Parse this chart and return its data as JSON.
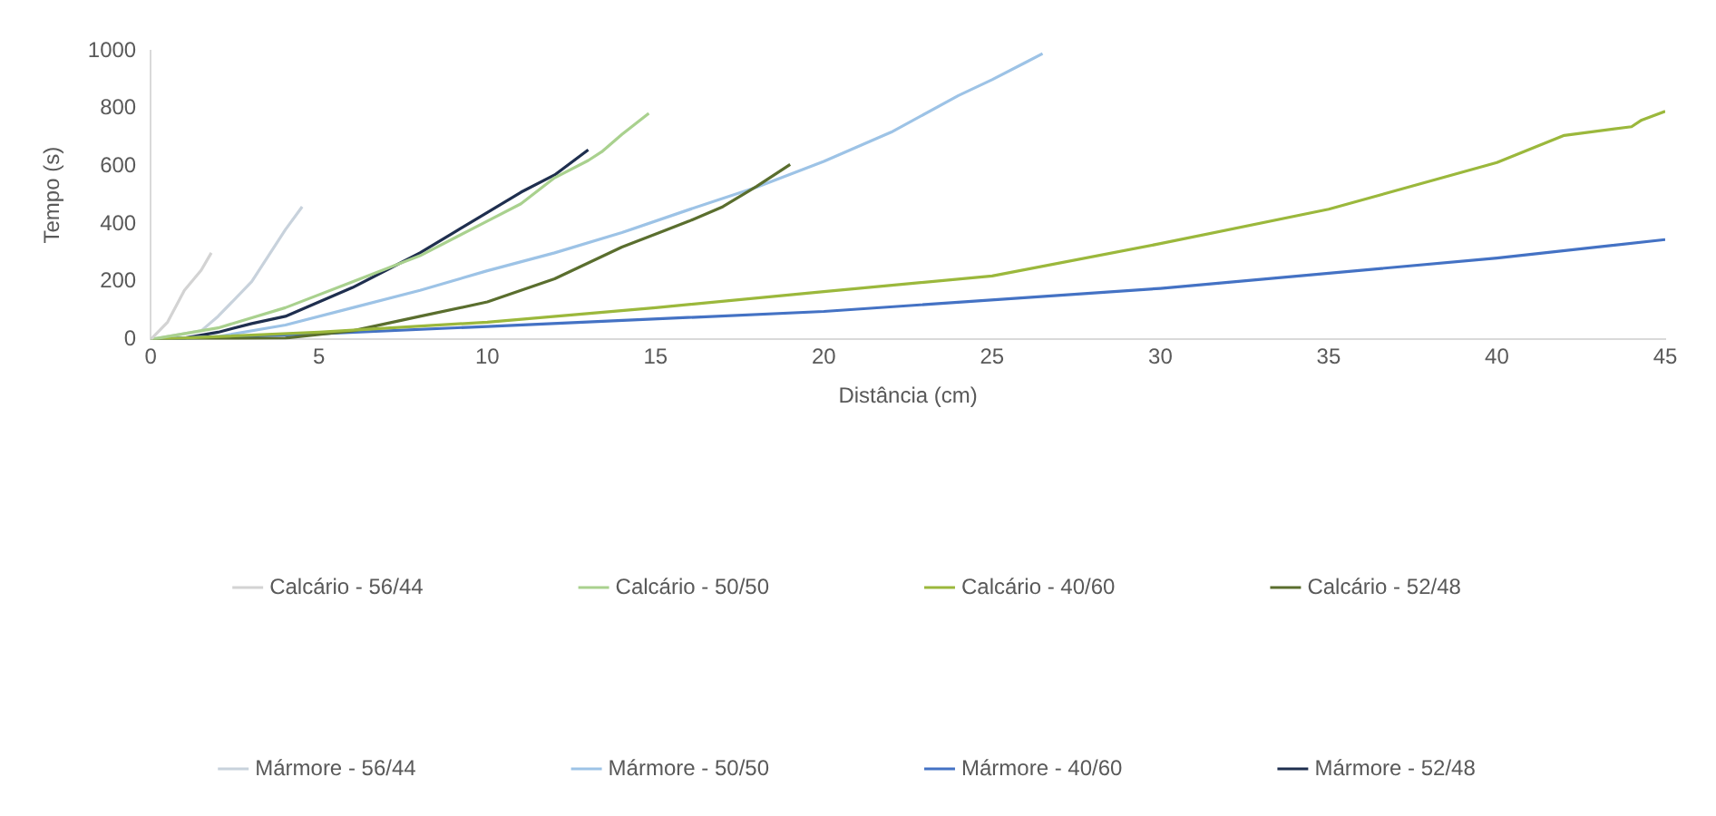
{
  "chart_data": {
    "type": "line",
    "xlabel": "Distância (cm)",
    "ylabel": "Tempo (s)",
    "xlim": [
      0,
      45
    ],
    "xticks": [
      0,
      5,
      10,
      15,
      20,
      25,
      30,
      35,
      40,
      45
    ],
    "ylim": [
      0,
      1000
    ],
    "yticks": [
      0,
      200,
      400,
      600,
      800,
      1000
    ],
    "grid": false,
    "legend": "bottom",
    "marker": "none",
    "line_style": "solid",
    "series": [
      {
        "name": "Calcário - 56/44",
        "color": "#d3d3d3",
        "x": [
          0,
          0.5,
          1,
          1.5,
          1.8
        ],
        "values": [
          0,
          60,
          170,
          240,
          300
        ]
      },
      {
        "name": "Calcário - 50/50",
        "color": "#a9d18e",
        "x": [
          0,
          2,
          4,
          6,
          8,
          10,
          11,
          12,
          13,
          13.4,
          14,
          14.8
        ],
        "values": [
          0,
          40,
          110,
          200,
          290,
          410,
          470,
          560,
          620,
          650,
          710,
          783
        ]
      },
      {
        "name": "Calcário - 40/60",
        "color": "#9bb83c",
        "x": [
          0,
          5,
          10,
          15,
          20,
          25,
          30,
          35,
          40,
          42,
          44,
          44.3,
          45
        ],
        "values": [
          0,
          25,
          60,
          110,
          166,
          220,
          332,
          451,
          613,
          707,
          737,
          760,
          790
        ]
      },
      {
        "name": "Calcário - 52/48",
        "color": "#5a6e2e",
        "x": [
          0,
          4,
          6,
          8,
          10,
          12,
          14,
          16,
          17,
          18,
          19
        ],
        "values": [
          0,
          5,
          30,
          80,
          130,
          210,
          320,
          410,
          460,
          530,
          606
        ]
      },
      {
        "name": "Mármore - 56/44",
        "color": "#c8d2dc",
        "x": [
          0,
          1.5,
          2,
          3,
          4,
          4.5
        ],
        "values": [
          0,
          30,
          80,
          200,
          380,
          460
        ]
      },
      {
        "name": "Mármore - 50/50",
        "color": "#9dc3e6",
        "x": [
          0,
          2,
          4,
          6,
          8,
          10,
          12,
          14,
          16,
          18,
          20,
          22,
          24,
          25,
          26,
          26.5
        ],
        "values": [
          0,
          10,
          50,
          110,
          170,
          238,
          300,
          370,
          450,
          527,
          617,
          718,
          845,
          900,
          960,
          990
        ]
      },
      {
        "name": "Mármore - 40/60",
        "color": "#4472c4",
        "x": [
          0,
          5,
          10,
          20,
          30,
          40,
          45
        ],
        "values": [
          0,
          20,
          45,
          97,
          177,
          282,
          346
        ]
      },
      {
        "name": "Mármore - 52/48",
        "color": "#1f2f4f",
        "x": [
          0,
          1,
          2,
          3,
          4,
          5,
          6,
          7,
          8,
          9,
          10,
          11,
          12,
          13
        ],
        "values": [
          0,
          5,
          25,
          55,
          80,
          130,
          180,
          240,
          300,
          370,
          440,
          510,
          570,
          657
        ]
      }
    ]
  }
}
